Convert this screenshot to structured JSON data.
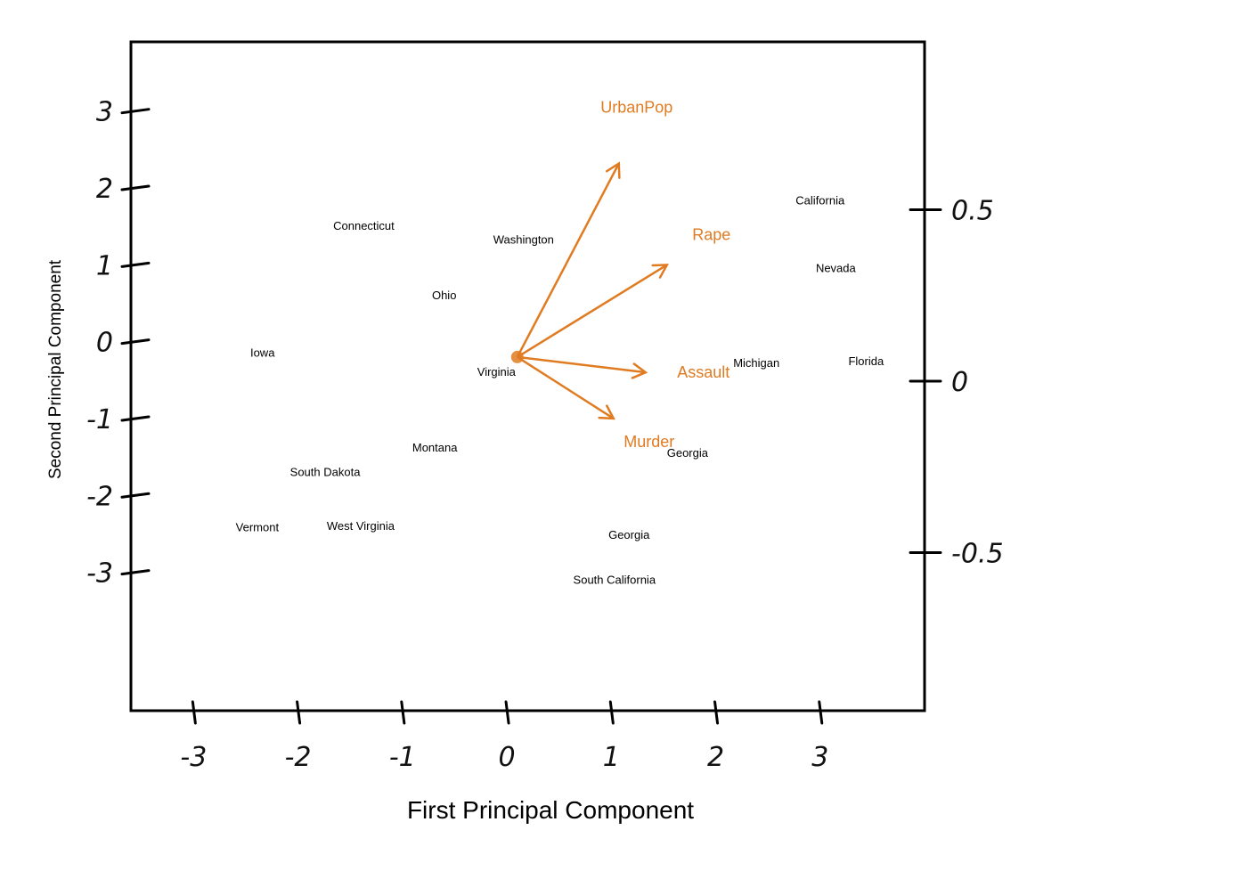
{
  "chart_data": {
    "type": "scatter",
    "xlabel": "First Principal Component",
    "ylabel": "Second Principal Component",
    "xlim": [
      -3.6,
      4.0
    ],
    "ylim": [
      -4.8,
      3.9
    ],
    "right_axis_range": [
      -0.5,
      0.5
    ],
    "grid": false,
    "x_ticks": [
      {
        "value": -3,
        "label": "-3"
      },
      {
        "value": -2,
        "label": "-2"
      },
      {
        "value": -1,
        "label": "-1"
      },
      {
        "value": 0,
        "label": "0"
      },
      {
        "value": 1,
        "label": "1"
      },
      {
        "value": 2,
        "label": "2"
      },
      {
        "value": 3,
        "label": "3"
      }
    ],
    "y_ticks": [
      {
        "value": 3,
        "label": "3"
      },
      {
        "value": 2,
        "label": "2"
      },
      {
        "value": 1,
        "label": "1"
      },
      {
        "value": 0,
        "label": "0"
      },
      {
        "value": -1,
        "label": "-1"
      },
      {
        "value": -2,
        "label": "-2"
      },
      {
        "value": -3,
        "label": "-3"
      }
    ],
    "right_ticks": [
      {
        "value": 0.5,
        "label": "0.5"
      },
      {
        "value": 0,
        "label": "0"
      },
      {
        "value": -0.5,
        "label": "-0.5"
      }
    ],
    "points": [
      {
        "label": "Connecticut",
        "x": -1.37,
        "y": 1.5
      },
      {
        "label": "Washington",
        "x": 0.16,
        "y": 1.32
      },
      {
        "label": "Ohio",
        "x": -0.6,
        "y": 0.6
      },
      {
        "label": "Iowa",
        "x": -2.34,
        "y": -0.15
      },
      {
        "value_note": "",
        "label": "Virginia",
        "x": -0.1,
        "y": -0.4
      },
      {
        "label": "Montana",
        "x": -0.69,
        "y": -1.38
      },
      {
        "label": "South Dakota",
        "x": -1.74,
        "y": -1.7
      },
      {
        "label": "Vermont",
        "x": -2.39,
        "y": -2.42
      },
      {
        "label": "West Virginia",
        "x": -1.4,
        "y": -2.4
      },
      {
        "label": "Georgia",
        "x": 1.73,
        "y": -1.45
      },
      {
        "label": "Georgia",
        "x": 1.17,
        "y": -2.52
      },
      {
        "label": "South California",
        "x": 1.03,
        "y": -3.1
      },
      {
        "label": "California",
        "x": 3.0,
        "y": 1.83
      },
      {
        "label": "Nevada",
        "x": 3.15,
        "y": 0.95
      },
      {
        "label": "Michigan",
        "x": 2.39,
        "y": -0.28
      },
      {
        "label": "Florida",
        "x": 3.44,
        "y": -0.26
      }
    ],
    "loadings": [
      {
        "name": "UrbanPop",
        "x": 0.19,
        "y": 0.63
      },
      {
        "name": "Rape",
        "x": 0.28,
        "y": 0.3
      },
      {
        "name": "Assault",
        "x": 0.24,
        "y": -0.05
      },
      {
        "name": "Murder",
        "x": 0.18,
        "y": -0.2
      }
    ],
    "colors": {
      "loading": "#e07b22",
      "points": "#000000",
      "axes": "#000000"
    }
  }
}
